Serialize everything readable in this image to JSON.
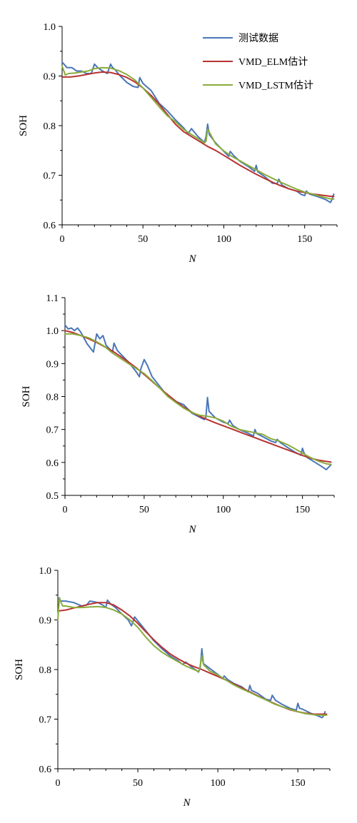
{
  "colors": {
    "measured": "#4a76b8",
    "elm": "#b83232",
    "lstm": "#8aac3c"
  },
  "chart_data": [
    {
      "type": "line",
      "xlabel": "N",
      "ylabel": "SOH",
      "xlim": [
        0,
        170
      ],
      "ylim": [
        0.6,
        1.0
      ],
      "xticks": [
        0,
        50,
        100,
        150
      ],
      "xtick_labels": [
        "0",
        "50",
        "100",
        "150"
      ],
      "yticks": [
        0.6,
        0.7,
        0.8,
        0.9,
        1.0
      ],
      "ytick_labels": [
        "0.6",
        "0.7",
        "0.8",
        "0.9",
        "1.0"
      ],
      "legend_position": "top-right",
      "series": [
        {
          "name": "测试数据",
          "color_key": "measured",
          "x": [
            0,
            3,
            6,
            9,
            12,
            15,
            18,
            20,
            22,
            25,
            28,
            30,
            31,
            33,
            36,
            40,
            44,
            47,
            48,
            50,
            55,
            60,
            65,
            70,
            75,
            78,
            80,
            84,
            88,
            89,
            90,
            91,
            95,
            100,
            103,
            104,
            106,
            110,
            115,
            119,
            120,
            121,
            125,
            130,
            133,
            134,
            136,
            140,
            145,
            148,
            150,
            151,
            153,
            158,
            163,
            166,
            167,
            168
          ],
          "y": [
            0.928,
            0.917,
            0.917,
            0.91,
            0.91,
            0.905,
            0.905,
            0.924,
            0.917,
            0.91,
            0.905,
            0.924,
            0.918,
            0.912,
            0.9,
            0.887,
            0.879,
            0.877,
            0.897,
            0.885,
            0.871,
            0.845,
            0.83,
            0.812,
            0.796,
            0.784,
            0.794,
            0.778,
            0.766,
            0.778,
            0.803,
            0.782,
            0.765,
            0.748,
            0.738,
            0.748,
            0.74,
            0.728,
            0.718,
            0.708,
            0.72,
            0.707,
            0.698,
            0.684,
            0.683,
            0.692,
            0.68,
            0.673,
            0.668,
            0.661,
            0.659,
            0.668,
            0.662,
            0.657,
            0.651,
            0.645,
            0.652,
            0.662
          ]
        },
        {
          "name": "VMD_ELM估计",
          "color_key": "elm",
          "x": [
            0,
            5,
            10,
            15,
            20,
            25,
            30,
            35,
            40,
            45,
            50,
            55,
            60,
            65,
            70,
            75,
            80,
            85,
            90,
            95,
            100,
            105,
            110,
            115,
            120,
            125,
            130,
            135,
            140,
            145,
            150,
            155,
            160,
            165,
            168
          ],
          "y": [
            0.898,
            0.898,
            0.9,
            0.903,
            0.906,
            0.908,
            0.907,
            0.903,
            0.897,
            0.888,
            0.876,
            0.861,
            0.843,
            0.823,
            0.803,
            0.788,
            0.778,
            0.768,
            0.758,
            0.75,
            0.74,
            0.73,
            0.72,
            0.711,
            0.702,
            0.694,
            0.686,
            0.679,
            0.673,
            0.668,
            0.665,
            0.662,
            0.66,
            0.658,
            0.657
          ]
        },
        {
          "name": "VMD_LSTM估计",
          "color_key": "lstm",
          "x": [
            0,
            2,
            4,
            8,
            12,
            16,
            20,
            25,
            30,
            35,
            40,
            45,
            50,
            55,
            60,
            65,
            70,
            75,
            80,
            85,
            88,
            89,
            90,
            91,
            95,
            100,
            105,
            110,
            115,
            120,
            125,
            130,
            135,
            140,
            145,
            150,
            155,
            160,
            165,
            168
          ],
          "y": [
            0.92,
            0.902,
            0.905,
            0.906,
            0.908,
            0.91,
            0.915,
            0.917,
            0.916,
            0.911,
            0.903,
            0.892,
            0.876,
            0.857,
            0.838,
            0.82,
            0.808,
            0.793,
            0.782,
            0.772,
            0.765,
            0.769,
            0.793,
            0.787,
            0.763,
            0.749,
            0.738,
            0.729,
            0.72,
            0.711,
            0.702,
            0.694,
            0.686,
            0.679,
            0.672,
            0.666,
            0.662,
            0.657,
            0.653,
            0.652
          ]
        }
      ]
    },
    {
      "type": "line",
      "xlabel": "N",
      "ylabel": "SOH",
      "xlim": [
        0,
        170
      ],
      "ylim": [
        0.5,
        1.1
      ],
      "xticks": [
        0,
        50,
        100,
        150
      ],
      "xtick_labels": [
        "0",
        "50",
        "100",
        "150"
      ],
      "yticks": [
        0.5,
        0.6,
        0.7,
        0.8,
        0.9,
        1.0,
        1.1
      ],
      "ytick_labels": [
        "0.5",
        "0.6",
        "0.7",
        "0.8",
        "0.9",
        "1.0",
        "1.1"
      ],
      "series": [
        {
          "name": "测试数据",
          "color_key": "measured",
          "x": [
            0,
            2,
            4,
            6,
            8,
            10,
            14,
            18,
            20,
            22,
            24,
            26,
            30,
            31,
            33,
            36,
            40,
            45,
            47,
            48,
            50,
            52,
            55,
            60,
            65,
            70,
            75,
            78,
            80,
            84,
            88,
            89,
            90,
            91,
            95,
            100,
            103,
            104,
            106,
            110,
            115,
            119,
            120,
            121,
            125,
            130,
            133,
            134,
            136,
            140,
            145,
            149,
            150,
            151,
            153,
            158,
            163,
            165,
            166,
            168
          ],
          "y": [
            1.017,
            1.005,
            1.008,
            1.0,
            1.008,
            0.995,
            0.96,
            0.935,
            0.99,
            0.975,
            0.985,
            0.955,
            0.935,
            0.962,
            0.94,
            0.925,
            0.905,
            0.875,
            0.86,
            0.885,
            0.912,
            0.895,
            0.86,
            0.83,
            0.8,
            0.785,
            0.775,
            0.76,
            0.75,
            0.74,
            0.73,
            0.738,
            0.797,
            0.755,
            0.735,
            0.722,
            0.718,
            0.728,
            0.712,
            0.7,
            0.69,
            0.68,
            0.7,
            0.688,
            0.678,
            0.665,
            0.66,
            0.67,
            0.66,
            0.647,
            0.632,
            0.622,
            0.643,
            0.628,
            0.615,
            0.6,
            0.585,
            0.578,
            0.583,
            0.593
          ]
        },
        {
          "name": "VMD_ELM估计",
          "color_key": "elm",
          "x": [
            0,
            5,
            10,
            15,
            20,
            25,
            30,
            35,
            40,
            45,
            50,
            55,
            60,
            65,
            70,
            75,
            80,
            85,
            90,
            95,
            100,
            105,
            110,
            115,
            120,
            125,
            130,
            135,
            140,
            145,
            150,
            155,
            160,
            165,
            168
          ],
          "y": [
            1.0,
            0.994,
            0.985,
            0.975,
            0.964,
            0.951,
            0.938,
            0.922,
            0.905,
            0.887,
            0.867,
            0.846,
            0.825,
            0.805,
            0.786,
            0.768,
            0.753,
            0.74,
            0.73,
            0.72,
            0.711,
            0.702,
            0.693,
            0.684,
            0.675,
            0.666,
            0.657,
            0.648,
            0.639,
            0.63,
            0.621,
            0.613,
            0.607,
            0.603,
            0.601
          ]
        },
        {
          "name": "VMD_LSTM估计",
          "color_key": "lstm",
          "x": [
            0,
            5,
            10,
            15,
            20,
            25,
            30,
            35,
            40,
            45,
            50,
            55,
            60,
            65,
            70,
            75,
            80,
            85,
            90,
            95,
            100,
            105,
            110,
            115,
            120,
            125,
            130,
            135,
            140,
            145,
            150,
            155,
            160,
            165,
            168
          ],
          "y": [
            0.99,
            0.99,
            0.985,
            0.978,
            0.966,
            0.952,
            0.932,
            0.916,
            0.9,
            0.885,
            0.87,
            0.848,
            0.825,
            0.8,
            0.782,
            0.765,
            0.752,
            0.743,
            0.74,
            0.735,
            0.725,
            0.71,
            0.7,
            0.695,
            0.69,
            0.685,
            0.672,
            0.665,
            0.655,
            0.642,
            0.628,
            0.615,
            0.604,
            0.596,
            0.594
          ]
        }
      ]
    },
    {
      "type": "line",
      "xlabel": "N",
      "ylabel": "SOH",
      "xlim": [
        0,
        170
      ],
      "ylim": [
        0.6,
        1.0
      ],
      "xticks": [
        0,
        50,
        100,
        150
      ],
      "xtick_labels": [
        "0",
        "50",
        "100",
        "150"
      ],
      "yticks": [
        0.6,
        0.7,
        0.8,
        0.9,
        1.0
      ],
      "ytick_labels": [
        "0.6",
        "0.7",
        "0.8",
        "0.9",
        "1.0"
      ],
      "series": [
        {
          "name": "测试数据",
          "color_key": "measured",
          "x": [
            0,
            2,
            5,
            10,
            15,
            18,
            20,
            22,
            25,
            28,
            30,
            31,
            33,
            36,
            40,
            44,
            46,
            48,
            50,
            55,
            60,
            65,
            70,
            75,
            78,
            80,
            84,
            88,
            89,
            90,
            91,
            95,
            100,
            103,
            104,
            106,
            110,
            115,
            119,
            120,
            121,
            125,
            130,
            133,
            134,
            136,
            140,
            145,
            149,
            150,
            151,
            153,
            158,
            163,
            165,
            166,
            167
          ],
          "y": [
            0.945,
            0.938,
            0.938,
            0.935,
            0.928,
            0.93,
            0.938,
            0.937,
            0.935,
            0.93,
            0.925,
            0.94,
            0.932,
            0.925,
            0.912,
            0.9,
            0.888,
            0.906,
            0.898,
            0.878,
            0.858,
            0.842,
            0.828,
            0.818,
            0.81,
            0.815,
            0.804,
            0.795,
            0.805,
            0.842,
            0.812,
            0.802,
            0.79,
            0.782,
            0.787,
            0.78,
            0.772,
            0.765,
            0.755,
            0.768,
            0.758,
            0.752,
            0.74,
            0.738,
            0.748,
            0.738,
            0.73,
            0.722,
            0.718,
            0.732,
            0.722,
            0.72,
            0.712,
            0.706,
            0.703,
            0.706,
            0.715
          ]
        },
        {
          "name": "VMD_ELM估计",
          "color_key": "elm",
          "x": [
            0,
            5,
            10,
            15,
            20,
            25,
            30,
            35,
            40,
            45,
            50,
            55,
            60,
            65,
            70,
            75,
            80,
            85,
            90,
            95,
            100,
            105,
            110,
            115,
            120,
            125,
            130,
            135,
            140,
            145,
            150,
            155,
            160,
            165,
            168
          ],
          "y": [
            0.918,
            0.92,
            0.924,
            0.928,
            0.932,
            0.935,
            0.935,
            0.93,
            0.92,
            0.908,
            0.893,
            0.876,
            0.86,
            0.845,
            0.832,
            0.822,
            0.813,
            0.806,
            0.8,
            0.793,
            0.786,
            0.779,
            0.771,
            0.763,
            0.755,
            0.747,
            0.739,
            0.732,
            0.725,
            0.719,
            0.715,
            0.712,
            0.71,
            0.71,
            0.71
          ]
        },
        {
          "name": "VMD_LSTM估计",
          "color_key": "lstm",
          "x": [
            0,
            1,
            2,
            3,
            5,
            10,
            15,
            20,
            25,
            30,
            35,
            40,
            45,
            50,
            55,
            60,
            65,
            70,
            75,
            80,
            85,
            88,
            89,
            90,
            91,
            95,
            100,
            105,
            110,
            115,
            120,
            125,
            130,
            135,
            140,
            145,
            150,
            155,
            160,
            165,
            168
          ],
          "y": [
            0.9,
            0.945,
            0.935,
            0.928,
            0.928,
            0.925,
            0.925,
            0.926,
            0.927,
            0.925,
            0.92,
            0.912,
            0.9,
            0.885,
            0.865,
            0.848,
            0.835,
            0.825,
            0.816,
            0.807,
            0.8,
            0.796,
            0.808,
            0.828,
            0.81,
            0.797,
            0.789,
            0.779,
            0.769,
            0.761,
            0.754,
            0.746,
            0.739,
            0.731,
            0.725,
            0.72,
            0.715,
            0.711,
            0.709,
            0.708,
            0.708
          ]
        }
      ]
    }
  ]
}
